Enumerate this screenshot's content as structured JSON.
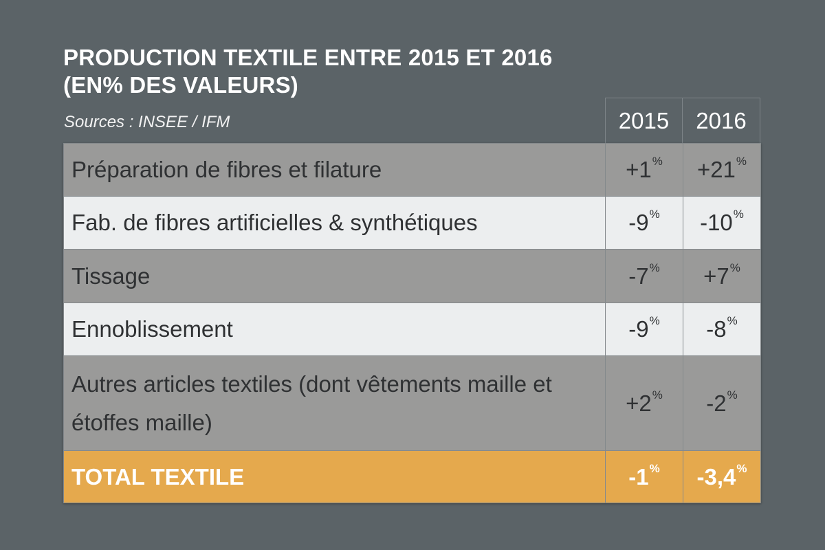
{
  "title_line1": "PRODUCTION TEXTILE ENTRE 2015 ET 2016",
  "title_line2": "(EN% DES VALEURS)",
  "source": "Sources : INSEE / IFM",
  "percent_symbol": "%",
  "colors": {
    "background": "#5b6367",
    "row_dark": "#9a9a99",
    "row_light": "#eceeef",
    "total_row": "#e5a94d"
  },
  "chart_data": {
    "type": "table",
    "title": "PRODUCTION TEXTILE ENTRE 2015 ET 2016 (EN% DES VALEURS)",
    "columns": [
      "2015",
      "2016"
    ],
    "rows": [
      {
        "label": "Préparation de fibres et filature",
        "values": [
          "+1",
          "+21"
        ]
      },
      {
        "label": "Fab. de fibres artificielles & synthétiques",
        "values": [
          "-9",
          "-10"
        ]
      },
      {
        "label": "Tissage",
        "values": [
          "-7",
          "+7"
        ]
      },
      {
        "label": "Ennoblissement",
        "values": [
          "-9",
          "-8"
        ]
      },
      {
        "label": "Autres articles textiles (dont vêtements maille et étoffes maille)",
        "values": [
          "+2",
          "-2"
        ]
      },
      {
        "label": "TOTAL TEXTILE",
        "values": [
          "-1",
          "-3,4"
        ]
      }
    ]
  }
}
